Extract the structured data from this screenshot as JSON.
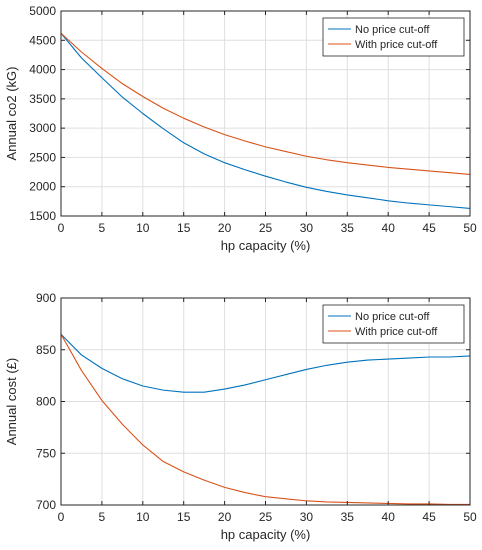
{
  "chart_data": [
    {
      "type": "line",
      "xlabel": "hp capacity (%)",
      "ylabel": "Annual co2 (kG)",
      "xlim": [
        0,
        50
      ],
      "ylim": [
        1500,
        5000
      ],
      "xticks": [
        0,
        5,
        10,
        15,
        20,
        25,
        30,
        35,
        40,
        45,
        50
      ],
      "yticks": [
        1500,
        2000,
        2500,
        3000,
        3500,
        4000,
        4500,
        5000
      ],
      "grid": true,
      "legend_position": "top-right",
      "x": [
        0,
        2.5,
        5,
        7.5,
        10,
        12.5,
        15,
        17.5,
        20,
        22.5,
        25,
        27.5,
        30,
        32.5,
        35,
        37.5,
        40,
        42.5,
        45,
        47.5,
        50
      ],
      "series": [
        {
          "name": "No price cut-off",
          "color": "#0072BD",
          "values": [
            4620,
            4200,
            3860,
            3530,
            3250,
            2990,
            2750,
            2560,
            2410,
            2290,
            2180,
            2080,
            1990,
            1920,
            1860,
            1810,
            1760,
            1720,
            1690,
            1660,
            1630
          ]
        },
        {
          "name": "With price cut-off",
          "color": "#D95319",
          "values": [
            4620,
            4300,
            4020,
            3760,
            3540,
            3340,
            3170,
            3020,
            2890,
            2780,
            2680,
            2600,
            2520,
            2460,
            2410,
            2370,
            2330,
            2300,
            2270,
            2240,
            2210
          ]
        }
      ]
    },
    {
      "type": "line",
      "xlabel": "hp capacity (%)",
      "ylabel": "Annual cost (£)",
      "xlim": [
        0,
        50
      ],
      "ylim": [
        700,
        900
      ],
      "xticks": [
        0,
        5,
        10,
        15,
        20,
        25,
        30,
        35,
        40,
        45,
        50
      ],
      "yticks": [
        700,
        750,
        800,
        850,
        900
      ],
      "grid": true,
      "legend_position": "top-right",
      "x": [
        0,
        2.5,
        5,
        7.5,
        10,
        12.5,
        15,
        17.5,
        20,
        22.5,
        25,
        27.5,
        30,
        32.5,
        35,
        37.5,
        40,
        42.5,
        45,
        47.5,
        50
      ],
      "series": [
        {
          "name": "No price cut-off",
          "color": "#0072BD",
          "values": [
            865,
            845,
            832,
            822,
            815,
            811,
            809,
            809,
            812,
            816,
            821,
            826,
            831,
            835,
            838,
            840,
            841,
            842,
            843,
            843,
            844
          ]
        },
        {
          "name": "With price cut-off",
          "color": "#D95319",
          "values": [
            865,
            830,
            801,
            778,
            758,
            742,
            732,
            724,
            717,
            712,
            708,
            706,
            704,
            703,
            702.5,
            702,
            701.5,
            701,
            701,
            700.5,
            700.5
          ]
        }
      ]
    }
  ]
}
